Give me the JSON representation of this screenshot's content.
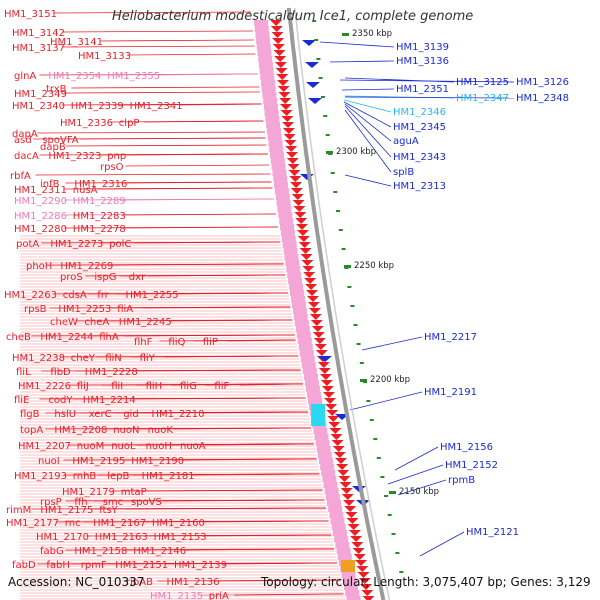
{
  "title": "Heliobacterium modesticaldum Ice1, complete genome",
  "footer": {
    "accession": "Accession: NC_010337",
    "info": "Topology: circular; Length: 3,075,407 bp; Genes: 3,129"
  },
  "colors": {
    "gene_label": "#e8202a",
    "pink_label": "#f07ab4",
    "blue_label": "#1a2ad6",
    "cyan_label": "#29b8e8",
    "arrow": "#ee1d24",
    "kbp_tick": "#2a8a2a"
  },
  "kbp_marks": [
    "2350 kbp",
    "2300 kbp",
    "2250 kbp",
    "2200 kbp",
    "2150 kbp"
  ],
  "left_labels": [
    "HM1_3151",
    "HM1_3142",
    "HM1_3141",
    "HM1_3137",
    "HM1_3133",
    "HM1_2354",
    "HM1_2355",
    "glnA",
    "trxB",
    "HM1_2349",
    "HM1_2340",
    "HM1_2339",
    "HM1_2341",
    "HM1_2336",
    "clpP",
    "dapA",
    "asd",
    "spoVFA",
    "dapB",
    "dacA",
    "HM1_2323",
    "pnp",
    "rpsO",
    "rbfA",
    "HM1_2316",
    "infB",
    "HM1_2311",
    "nusA",
    "HM1_2290",
    "HM1_2289",
    "HM1_2286",
    "HM1_2283",
    "HM1_2280",
    "HM1_2278",
    "potA",
    "HM1_2273",
    "polC",
    "phoH",
    "HM1_2269",
    "proS",
    "ispG",
    "dxr",
    "HM1_2263",
    "cdsA",
    "frr",
    "HM1_2255",
    "rpsB",
    "HM1_2253",
    "fliA",
    "cheW",
    "cheA",
    "HM1_2245",
    "cheB",
    "HM1_2244",
    "flhA",
    "flhF",
    "fliQ",
    "fliP",
    "HM1_2238",
    "cheY",
    "fliN",
    "fliY",
    "fliL",
    "flbD",
    "HM1_2228",
    "HM1_2226",
    "fliJ",
    "fliI",
    "fliH",
    "fliG",
    "fliF",
    "fliE",
    "codY",
    "HM1_2214",
    "flgB",
    "hslU",
    "xerC",
    "gid",
    "HM1_2210",
    "topA",
    "HM1_2208",
    "nuoN",
    "nuoK",
    "HM1_2207",
    "nuoM",
    "nuoL",
    "nuoH",
    "nuoA",
    "nuoI",
    "HM1_2195",
    "HM1_2190",
    "HM1_2193",
    "rnhB",
    "lepB",
    "HM1_2181",
    "HM1_2179",
    "mtaP",
    "rpsP",
    "ffh",
    "rimM",
    "HM1_2175",
    "ftsY",
    "smc",
    "spoVS",
    "HM1_2177",
    "rnc",
    "HM1_2167",
    "HM1_2160",
    "HM1_2170",
    "HM1_2163",
    "HM1_2153",
    "fabG",
    "HM1_2158",
    "HM1_2146",
    "fabD",
    "fabH",
    "rpmF",
    "HM1_2151",
    "HM1_2139",
    "ribAB",
    "HM1_2136",
    "HM1_2135",
    "priA"
  ],
  "right_labels": [
    "HM1_3139",
    "HM1_3136",
    "HM1_3125",
    "HM1_3126",
    "HM1_2351",
    "HM1_2347",
    "HM1_2348",
    "HM1_2346",
    "HM1_2345",
    "aguA",
    "HM1_2343",
    "splB",
    "HM1_2313",
    "HM1_2217",
    "HM1_2191",
    "HM1_2156",
    "HM1_2152",
    "rpmB",
    "HM1_2121"
  ]
}
